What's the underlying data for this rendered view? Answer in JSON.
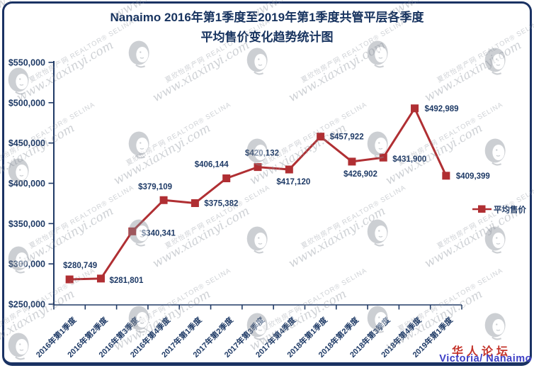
{
  "title": {
    "line1": "Nanaimo 2016年第1季度至2019年第1季度共管平层各季度",
    "line2": "平均售价变化趋势统计图"
  },
  "chart_data": {
    "type": "line",
    "title": "Nanaimo 2016年第1季度至2019年第1季度共管平层各季度平均售价变化趋势统计图",
    "categories": [
      "2016年第1季度",
      "2016年第2季度",
      "2016年第3季度",
      "2016年第4季度",
      "2017年第1季度",
      "2017年第2季度",
      "2017年第3季度",
      "2017年第4季度",
      "2018年第1季度",
      "2018年第2季度",
      "2018年第3季度",
      "2018年第4季度",
      "2019年第1季度"
    ],
    "series": [
      {
        "name": "平均售价",
        "values": [
          280749,
          281801,
          340341,
          379109,
          375382,
          406144,
          420132,
          417120,
          457922,
          426902,
          431900,
          492989,
          409399
        ]
      }
    ],
    "ylim": [
      250000,
      550000
    ],
    "ytick_step": 50000,
    "y_tick_labels": [
      "$250,000",
      "$300,000",
      "$350,000",
      "$400,000",
      "$450,000",
      "$500,000",
      "$550,000"
    ],
    "xlabel": "",
    "ylabel": "",
    "grid": false,
    "marker": "square",
    "legend": {
      "label": "平均售价",
      "position": "right"
    }
  },
  "watermark": {
    "site": "夏欣怡房产网",
    "realtor": "REALTOR® SELINA",
    "url": "www.xiaxinyi.com"
  },
  "footer": {
    "forum": "华人论坛",
    "location": "Victoria/ Nanaimo"
  },
  "colors": {
    "navy": "#1E3A66",
    "axis_navy": "#203A66",
    "line_red": "#B02F33",
    "forum_red": "#C4342B",
    "location_blue": "#3D3FC6",
    "watermark_gray": "#878E98"
  }
}
